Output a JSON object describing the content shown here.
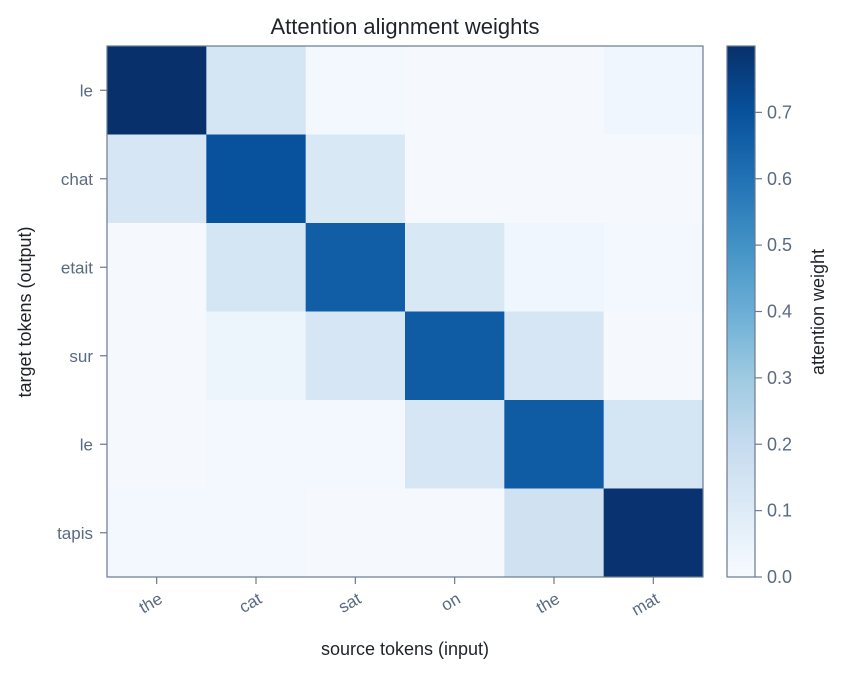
{
  "chart_data": {
    "type": "heatmap",
    "title": "Attention alignment weights",
    "xlabel": "source tokens (input)",
    "ylabel": "target tokens (output)",
    "x_categories": [
      "the",
      "cat",
      "sat",
      "on",
      "the",
      "mat"
    ],
    "y_categories": [
      "le",
      "chat",
      "etait",
      "sur",
      "le",
      "tapis"
    ],
    "values": [
      [
        0.8,
        0.14,
        0.02,
        0.01,
        0.01,
        0.03
      ],
      [
        0.13,
        0.7,
        0.12,
        0.01,
        0.01,
        0.01
      ],
      [
        0.01,
        0.14,
        0.66,
        0.12,
        0.03,
        0.02
      ],
      [
        0.01,
        0.04,
        0.13,
        0.67,
        0.13,
        0.01
      ],
      [
        0.01,
        0.02,
        0.02,
        0.13,
        0.67,
        0.14
      ],
      [
        0.02,
        0.02,
        0.01,
        0.01,
        0.16,
        0.79
      ]
    ],
    "colormap": "Blues",
    "colorbar": {
      "label": "attention weight",
      "range": [
        0.0,
        0.8
      ],
      "ticks": [
        0.0,
        0.1,
        0.2,
        0.3,
        0.4,
        0.5,
        0.6,
        0.7
      ],
      "tick_labels": [
        "0.0",
        "0.1",
        "0.2",
        "0.3",
        "0.4",
        "0.5",
        "0.6",
        "0.7"
      ]
    },
    "grid": false,
    "colors": {
      "text": "#1f2329",
      "tick_text": "#5a6a80",
      "frame": "#6a7a90"
    }
  }
}
